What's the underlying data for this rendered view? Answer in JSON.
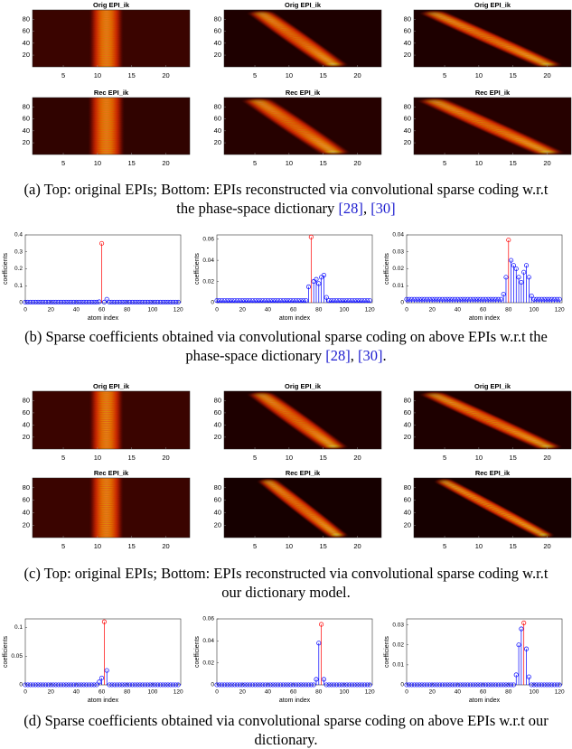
{
  "chart_data": [
    {
      "type": "heatmap",
      "title": "Orig EPI_ik",
      "xlim": [
        0.5,
        23.5
      ],
      "ylim": [
        0.5,
        95.5
      ],
      "xticks": [
        5,
        10,
        15,
        20
      ],
      "yticks": [
        20,
        40,
        60,
        80
      ]
    },
    {
      "type": "heatmap",
      "title": "Orig EPI_ik",
      "xlim": [
        0.5,
        23.5
      ],
      "ylim": [
        0.5,
        95.5
      ],
      "xticks": [
        5,
        10,
        15,
        20
      ],
      "yticks": [
        20,
        40,
        60,
        80
      ]
    },
    {
      "type": "heatmap",
      "title": "Orig EPI_ik",
      "xlim": [
        0.5,
        23.5
      ],
      "ylim": [
        0.5,
        95.5
      ],
      "xticks": [
        5,
        10,
        15,
        20
      ],
      "yticks": [
        20,
        40,
        60,
        80
      ]
    },
    {
      "type": "heatmap",
      "title": "Rec EPI_ik",
      "xlim": [
        0.5,
        23.5
      ],
      "ylim": [
        0.5,
        95.5
      ],
      "xticks": [
        5,
        10,
        15,
        20
      ],
      "yticks": [
        20,
        40,
        60,
        80
      ]
    },
    {
      "type": "heatmap",
      "title": "Rec EPI_ik",
      "xlim": [
        0.5,
        23.5
      ],
      "ylim": [
        0.5,
        95.5
      ],
      "xticks": [
        5,
        10,
        15,
        20
      ],
      "yticks": [
        20,
        40,
        60,
        80
      ]
    },
    {
      "type": "heatmap",
      "title": "Rec EPI_ik",
      "xlim": [
        0.5,
        23.5
      ],
      "ylim": [
        0.5,
        95.5
      ],
      "xticks": [
        5,
        10,
        15,
        20
      ],
      "yticks": [
        20,
        40,
        60,
        80
      ]
    },
    {
      "type": "stem",
      "xlabel": "atom index",
      "ylabel": "coefficients",
      "color": "#0000ff",
      "peak_color": "#ff0000",
      "xlim": [
        0,
        122
      ],
      "xticks": [
        0,
        20,
        40,
        60,
        80,
        100,
        120
      ],
      "ylim": [
        0,
        0.4
      ],
      "yticks": [
        0,
        0.1,
        0.2,
        0.3,
        0.4
      ],
      "x": [
        0,
        2,
        4,
        6,
        8,
        10,
        12,
        14,
        16,
        18,
        20,
        22,
        24,
        26,
        28,
        30,
        32,
        34,
        36,
        38,
        40,
        42,
        44,
        46,
        48,
        50,
        52,
        54,
        56,
        58,
        60,
        62,
        64,
        66,
        68,
        70,
        72,
        74,
        76,
        78,
        80,
        82,
        84,
        86,
        88,
        90,
        92,
        94,
        96,
        98,
        100,
        102,
        104,
        106,
        108,
        110,
        112,
        114,
        116,
        118,
        120
      ],
      "values": [
        0.003,
        0.003,
        0.003,
        0.003,
        0.003,
        0.003,
        0.003,
        0.003,
        0.003,
        0.003,
        0.003,
        0.003,
        0.003,
        0.003,
        0.003,
        0.003,
        0.003,
        0.003,
        0.003,
        0.003,
        0.003,
        0.003,
        0.003,
        0.003,
        0.003,
        0.003,
        0.003,
        0.003,
        0.003,
        0.005,
        0.35,
        0.003,
        0.02,
        0.003,
        0.003,
        0.003,
        0.003,
        0.003,
        0.003,
        0.003,
        0.003,
        0.003,
        0.003,
        0.003,
        0.003,
        0.003,
        0.003,
        0.003,
        0.003,
        0.003,
        0.003,
        0.003,
        0.003,
        0.003,
        0.003,
        0.003,
        0.003,
        0.003,
        0.003,
        0.003,
        0.003
      ]
    },
    {
      "type": "stem",
      "xlabel": "atom index",
      "ylabel": "coefficients",
      "color": "#0000ff",
      "peak_color": "#ff0000",
      "xlim": [
        0,
        122
      ],
      "xticks": [
        0,
        20,
        40,
        60,
        80,
        100,
        120
      ],
      "ylim": [
        0,
        0.064
      ],
      "yticks": [
        0,
        0.02,
        0.04,
        0.06
      ],
      "x": [
        0,
        2,
        4,
        6,
        8,
        10,
        12,
        14,
        16,
        18,
        20,
        22,
        24,
        26,
        28,
        30,
        32,
        34,
        36,
        38,
        40,
        42,
        44,
        46,
        48,
        50,
        52,
        54,
        56,
        58,
        60,
        62,
        64,
        66,
        68,
        70,
        72,
        74,
        76,
        78,
        80,
        82,
        84,
        86,
        88,
        90,
        92,
        94,
        96,
        98,
        100,
        102,
        104,
        106,
        108,
        110,
        112,
        114,
        116,
        118,
        120
      ],
      "values": [
        0.002,
        0.002,
        0.002,
        0.002,
        0.002,
        0.002,
        0.002,
        0.002,
        0.002,
        0.002,
        0.002,
        0.002,
        0.002,
        0.002,
        0.002,
        0.002,
        0.002,
        0.002,
        0.002,
        0.002,
        0.002,
        0.002,
        0.002,
        0.002,
        0.002,
        0.002,
        0.002,
        0.002,
        0.002,
        0.002,
        0.002,
        0.002,
        0.002,
        0.002,
        0.002,
        0.002,
        0.015,
        0.062,
        0.02,
        0.022,
        0.018,
        0.024,
        0.026,
        0.005,
        0.002,
        0.002,
        0.002,
        0.002,
        0.002,
        0.002,
        0.002,
        0.002,
        0.002,
        0.002,
        0.002,
        0.002,
        0.002,
        0.002,
        0.002,
        0.002,
        0.002
      ]
    },
    {
      "type": "stem",
      "xlabel": "atom index",
      "ylabel": "coefficients",
      "color": "#0000ff",
      "peak_color": "#ff0000",
      "xlim": [
        0,
        122
      ],
      "xticks": [
        0,
        20,
        40,
        60,
        80,
        100,
        120
      ],
      "ylim": [
        0,
        0.04
      ],
      "yticks": [
        0,
        0.01,
        0.02,
        0.03,
        0.04
      ],
      "x": [
        0,
        2,
        4,
        6,
        8,
        10,
        12,
        14,
        16,
        18,
        20,
        22,
        24,
        26,
        28,
        30,
        32,
        34,
        36,
        38,
        40,
        42,
        44,
        46,
        48,
        50,
        52,
        54,
        56,
        58,
        60,
        62,
        64,
        66,
        68,
        70,
        72,
        74,
        76,
        78,
        80,
        82,
        84,
        86,
        88,
        90,
        92,
        94,
        96,
        98,
        100,
        102,
        104,
        106,
        108,
        110,
        112,
        114,
        116,
        118,
        120
      ],
      "values": [
        0.002,
        0.002,
        0.002,
        0.002,
        0.002,
        0.002,
        0.002,
        0.002,
        0.002,
        0.002,
        0.002,
        0.002,
        0.002,
        0.002,
        0.002,
        0.002,
        0.002,
        0.002,
        0.002,
        0.002,
        0.002,
        0.002,
        0.002,
        0.002,
        0.002,
        0.002,
        0.002,
        0.002,
        0.002,
        0.002,
        0.002,
        0.002,
        0.002,
        0.002,
        0.002,
        0.002,
        0.002,
        0.002,
        0.005,
        0.015,
        0.037,
        0.025,
        0.022,
        0.02,
        0.015,
        0.012,
        0.018,
        0.022,
        0.015,
        0.004,
        0.002,
        0.002,
        0.002,
        0.002,
        0.002,
        0.002,
        0.002,
        0.002,
        0.002,
        0.002,
        0.002
      ]
    },
    {
      "type": "heatmap",
      "title": "Orig EPI_ik",
      "xlim": [
        0.5,
        23.5
      ],
      "ylim": [
        0.5,
        95.5
      ],
      "xticks": [
        5,
        10,
        15,
        20
      ],
      "yticks": [
        20,
        40,
        60,
        80
      ]
    },
    {
      "type": "heatmap",
      "title": "Orig EPI_ik",
      "xlim": [
        0.5,
        23.5
      ],
      "ylim": [
        0.5,
        95.5
      ],
      "xticks": [
        5,
        10,
        15,
        20
      ],
      "yticks": [
        20,
        40,
        60,
        80
      ]
    },
    {
      "type": "heatmap",
      "title": "Orig EPI_ik",
      "xlim": [
        0.5,
        23.5
      ],
      "ylim": [
        0.5,
        95.5
      ],
      "xticks": [
        5,
        10,
        15,
        20
      ],
      "yticks": [
        20,
        40,
        60,
        80
      ]
    },
    {
      "type": "heatmap",
      "title": "Rec EPI_ik",
      "xlim": [
        0.5,
        23.5
      ],
      "ylim": [
        0.5,
        95.5
      ],
      "xticks": [
        5,
        10,
        15,
        20
      ],
      "yticks": [
        20,
        40,
        60,
        80
      ]
    },
    {
      "type": "heatmap",
      "title": "Rec EPI_ik",
      "xlim": [
        0.5,
        23.5
      ],
      "ylim": [
        0.5,
        95.5
      ],
      "xticks": [
        5,
        10,
        15,
        20
      ],
      "yticks": [
        20,
        40,
        60,
        80
      ]
    },
    {
      "type": "heatmap",
      "title": "Rec EPI_ik",
      "xlim": [
        0.5,
        23.5
      ],
      "ylim": [
        0.5,
        95.5
      ],
      "xticks": [
        5,
        10,
        15,
        20
      ],
      "yticks": [
        20,
        40,
        60,
        80
      ]
    },
    {
      "type": "stem",
      "xlabel": "atom index",
      "ylabel": "coefficients",
      "color": "#0000ff",
      "peak_color": "#ff0000",
      "xlim": [
        0,
        122
      ],
      "xticks": [
        0,
        20,
        40,
        60,
        80,
        100,
        120
      ],
      "ylim": [
        0,
        0.115
      ],
      "yticks": [
        0,
        0.05,
        0.1
      ],
      "x": [
        0,
        2,
        4,
        6,
        8,
        10,
        12,
        14,
        16,
        18,
        20,
        22,
        24,
        26,
        28,
        30,
        32,
        34,
        36,
        38,
        40,
        42,
        44,
        46,
        48,
        50,
        52,
        54,
        56,
        58,
        60,
        62,
        64,
        66,
        68,
        70,
        72,
        74,
        76,
        78,
        80,
        82,
        84,
        86,
        88,
        90,
        92,
        94,
        96,
        98,
        100,
        102,
        104,
        106,
        108,
        110,
        112,
        114,
        116,
        118,
        120
      ],
      "values": [
        0,
        0,
        0,
        0,
        0,
        0,
        0,
        0,
        0,
        0,
        0,
        0,
        0,
        0,
        0,
        0,
        0,
        0,
        0,
        0,
        0,
        0,
        0,
        0,
        0,
        0,
        0,
        0,
        0,
        0.005,
        0.012,
        0.11,
        0.025,
        0,
        0,
        0,
        0,
        0,
        0,
        0,
        0,
        0,
        0,
        0,
        0,
        0,
        0,
        0,
        0,
        0,
        0,
        0,
        0,
        0,
        0,
        0,
        0,
        0,
        0,
        0,
        0
      ]
    },
    {
      "type": "stem",
      "xlabel": "atom index",
      "ylabel": "coefficients",
      "color": "#0000ff",
      "peak_color": "#ff0000",
      "xlim": [
        0,
        122
      ],
      "xticks": [
        0,
        20,
        40,
        60,
        80,
        100,
        120
      ],
      "ylim": [
        0,
        0.06
      ],
      "yticks": [
        0,
        0.02,
        0.04,
        0.06
      ],
      "x": [
        0,
        2,
        4,
        6,
        8,
        10,
        12,
        14,
        16,
        18,
        20,
        22,
        24,
        26,
        28,
        30,
        32,
        34,
        36,
        38,
        40,
        42,
        44,
        46,
        48,
        50,
        52,
        54,
        56,
        58,
        60,
        62,
        64,
        66,
        68,
        70,
        72,
        74,
        76,
        78,
        80,
        82,
        84,
        86,
        88,
        90,
        92,
        94,
        96,
        98,
        100,
        102,
        104,
        106,
        108,
        110,
        112,
        114,
        116,
        118,
        120
      ],
      "values": [
        0,
        0,
        0,
        0,
        0,
        0,
        0,
        0,
        0,
        0,
        0,
        0,
        0,
        0,
        0,
        0,
        0,
        0,
        0,
        0,
        0,
        0,
        0,
        0,
        0,
        0,
        0,
        0,
        0,
        0,
        0,
        0,
        0,
        0,
        0,
        0,
        0,
        0,
        0,
        0.005,
        0.038,
        0.055,
        0.005,
        0,
        0,
        0,
        0,
        0,
        0,
        0,
        0,
        0,
        0,
        0,
        0,
        0,
        0,
        0,
        0,
        0,
        0
      ]
    },
    {
      "type": "stem",
      "xlabel": "atom index",
      "ylabel": "coefficients",
      "color": "#0000ff",
      "peak_color": "#ff0000",
      "xlim": [
        0,
        122
      ],
      "xticks": [
        0,
        20,
        40,
        60,
        80,
        100,
        120
      ],
      "ylim": [
        0,
        0.033
      ],
      "yticks": [
        0,
        0.01,
        0.02,
        0.03
      ],
      "x": [
        0,
        2,
        4,
        6,
        8,
        10,
        12,
        14,
        16,
        18,
        20,
        22,
        24,
        26,
        28,
        30,
        32,
        34,
        36,
        38,
        40,
        42,
        44,
        46,
        48,
        50,
        52,
        54,
        56,
        58,
        60,
        62,
        64,
        66,
        68,
        70,
        72,
        74,
        76,
        78,
        80,
        82,
        84,
        86,
        88,
        90,
        92,
        94,
        96,
        98,
        100,
        102,
        104,
        106,
        108,
        110,
        112,
        114,
        116,
        118,
        120
      ],
      "values": [
        0,
        0,
        0,
        0,
        0,
        0,
        0,
        0,
        0,
        0,
        0,
        0,
        0,
        0,
        0,
        0,
        0,
        0,
        0,
        0,
        0,
        0,
        0,
        0,
        0,
        0,
        0,
        0,
        0,
        0,
        0,
        0,
        0,
        0,
        0,
        0,
        0,
        0,
        0,
        0,
        0,
        0,
        0,
        0.005,
        0.02,
        0.028,
        0.031,
        0.018,
        0.004,
        0,
        0,
        0,
        0,
        0,
        0,
        0,
        0,
        0,
        0,
        0,
        0
      ]
    }
  ],
  "captions": [
    {
      "text": "(a) Top: original EPIs; Bottom: EPIs reconstructed via convolutional sparse coding w.r.t the phase-space dictionary ",
      "refs": [
        "[28]",
        "[30]"
      ],
      "sep": ", "
    },
    {
      "text": "(b) Sparse coefficients obtained via convolutional sparse coding on above EPIs w.r.t the phase-space dictionary ",
      "refs": [
        "[28]",
        "[30]"
      ],
      "sep": ", ",
      "end": "."
    },
    {
      "text": "(c) Top: original EPIs; Bottom: EPIs reconstructed via convolutional sparse coding w.r.t our dictionary model."
    },
    {
      "text": "(d) Sparse coefficients obtained via convolutional sparse coding on above EPIs w.r.t our dictionary."
    }
  ]
}
